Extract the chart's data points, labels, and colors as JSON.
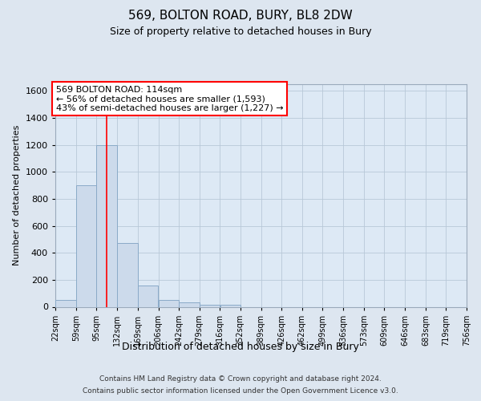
{
  "title": "569, BOLTON ROAD, BURY, BL8 2DW",
  "subtitle": "Size of property relative to detached houses in Bury",
  "xlabel": "Distribution of detached houses by size in Bury",
  "ylabel": "Number of detached properties",
  "footer_line1": "Contains HM Land Registry data © Crown copyright and database right 2024.",
  "footer_line2": "Contains public sector information licensed under the Open Government Licence v3.0.",
  "bar_fill_color": "#ccdaeb",
  "bar_edge_color": "#8aaac8",
  "grid_color": "#b8c8d8",
  "annotation_text": "569 BOLTON ROAD: 114sqm\n← 56% of detached houses are smaller (1,593)\n43% of semi-detached houses are larger (1,227) →",
  "property_line_x": 114,
  "bin_edges": [
    22,
    59,
    95,
    132,
    169,
    206,
    242,
    279,
    316,
    352,
    389,
    426,
    462,
    499,
    536,
    573,
    609,
    646,
    683,
    719,
    756
  ],
  "bin_labels": [
    "22sqm",
    "59sqm",
    "95sqm",
    "132sqm",
    "169sqm",
    "206sqm",
    "242sqm",
    "279sqm",
    "316sqm",
    "352sqm",
    "389sqm",
    "426sqm",
    "462sqm",
    "499sqm",
    "536sqm",
    "573sqm",
    "609sqm",
    "646sqm",
    "683sqm",
    "719sqm",
    "756sqm"
  ],
  "bar_heights": [
    50,
    900,
    1200,
    470,
    155,
    50,
    30,
    15,
    15,
    0,
    0,
    0,
    0,
    0,
    0,
    0,
    0,
    0,
    0,
    0
  ],
  "ylim": [
    0,
    1650
  ],
  "yticks": [
    0,
    200,
    400,
    600,
    800,
    1000,
    1200,
    1400,
    1600
  ],
  "fig_bg_color": "#dde6f0",
  "plot_bg_color": "#dde9f5"
}
